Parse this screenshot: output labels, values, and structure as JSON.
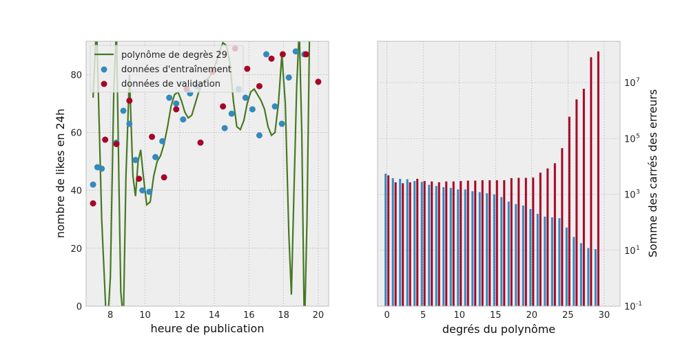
{
  "chart_data": [
    {
      "type": "scatter",
      "xlabel": "heure de publication",
      "ylabel": "nombre de likes en 24h",
      "xlim": [
        6.6,
        20.6
      ],
      "ylim": [
        0,
        91.5
      ],
      "xticks": [
        8,
        10,
        12,
        14,
        16,
        18,
        20
      ],
      "yticks": [
        0,
        20,
        40,
        60,
        80
      ],
      "grid": true,
      "legend_position": "top-left",
      "colors": {
        "polynomial": "#467821",
        "train": "#348ABD",
        "validation": "#A60628",
        "background": "#EEEEEE"
      },
      "series": [
        {
          "name": "polynôme de degrès 29",
          "kind": "line",
          "points": [
            [
              7.0,
              72
            ],
            [
              7.2,
              98
            ],
            [
              7.5,
              30
            ],
            [
              7.8,
              -10
            ],
            [
              8.0,
              10
            ],
            [
              8.2,
              75
            ],
            [
              8.35,
              96
            ],
            [
              8.5,
              40
            ],
            [
              8.6,
              5
            ],
            [
              8.75,
              -5
            ],
            [
              8.9,
              45
            ],
            [
              9.1,
              80
            ],
            [
              9.3,
              45
            ],
            [
              9.45,
              38
            ],
            [
              9.6,
              50
            ],
            [
              9.75,
              54
            ],
            [
              9.9,
              45
            ],
            [
              10.1,
              35
            ],
            [
              10.3,
              36
            ],
            [
              10.5,
              45
            ],
            [
              10.7,
              50
            ],
            [
              10.9,
              52
            ],
            [
              11.1,
              56
            ],
            [
              11.3,
              62
            ],
            [
              11.5,
              69
            ],
            [
              11.7,
              73
            ],
            [
              11.9,
              74
            ],
            [
              12.1,
              71
            ],
            [
              12.3,
              67
            ],
            [
              12.5,
              65
            ],
            [
              12.7,
              66
            ],
            [
              12.9,
              70
            ],
            [
              13.1,
              74
            ],
            [
              13.3,
              77
            ],
            [
              13.5,
              78
            ],
            [
              13.7,
              79
            ],
            [
              13.9,
              81
            ],
            [
              14.1,
              84
            ],
            [
              14.3,
              88
            ],
            [
              14.5,
              91
            ],
            [
              14.7,
              90
            ],
            [
              14.9,
              84
            ],
            [
              15.1,
              71
            ],
            [
              15.3,
              62
            ],
            [
              15.5,
              61
            ],
            [
              15.7,
              64
            ],
            [
              15.9,
              70
            ],
            [
              16.1,
              74
            ],
            [
              16.3,
              75
            ],
            [
              16.5,
              73
            ],
            [
              16.7,
              71
            ],
            [
              16.9,
              68
            ],
            [
              17.1,
              62
            ],
            [
              17.3,
              59
            ],
            [
              17.5,
              60
            ],
            [
              17.7,
              70
            ],
            [
              17.9,
              87
            ],
            [
              18.1,
              70
            ],
            [
              18.3,
              25
            ],
            [
              18.45,
              4
            ],
            [
              18.6,
              40
            ],
            [
              18.75,
              75
            ],
            [
              18.9,
              96
            ],
            [
              19.05,
              60
            ],
            [
              19.2,
              -10
            ],
            [
              19.35,
              30
            ],
            [
              19.5,
              96
            ]
          ]
        },
        {
          "name": "données d'entraînement",
          "kind": "scatter",
          "points": [
            [
              7.0,
              42
            ],
            [
              7.25,
              48
            ],
            [
              7.5,
              47.5
            ],
            [
              8.35,
              56.5
            ],
            [
              8.75,
              67.5
            ],
            [
              9.1,
              63
            ],
            [
              9.45,
              50.5
            ],
            [
              9.85,
              40
            ],
            [
              10.25,
              39.5
            ],
            [
              10.6,
              51.5
            ],
            [
              11.0,
              57
            ],
            [
              11.4,
              72
            ],
            [
              11.8,
              70
            ],
            [
              12.2,
              64.5
            ],
            [
              12.6,
              73.5
            ],
            [
              13.0,
              76
            ],
            [
              14.6,
              61.5
            ],
            [
              15.0,
              66.5
            ],
            [
              15.4,
              75
            ],
            [
              15.8,
              72
            ],
            [
              16.2,
              68
            ],
            [
              16.6,
              59
            ],
            [
              17.0,
              87
            ],
            [
              17.5,
              69
            ],
            [
              17.9,
              63
            ],
            [
              18.3,
              79
            ],
            [
              18.7,
              88
            ],
            [
              19.2,
              87
            ]
          ]
        },
        {
          "name": "données de validation",
          "kind": "scatter",
          "points": [
            [
              7.0,
              35.5
            ],
            [
              7.7,
              57.5
            ],
            [
              8.35,
              56
            ],
            [
              9.1,
              71
            ],
            [
              9.65,
              44
            ],
            [
              10.4,
              58.5
            ],
            [
              11.1,
              44.5
            ],
            [
              11.8,
              68
            ],
            [
              12.4,
              75
            ],
            [
              13.2,
              56.5
            ],
            [
              13.9,
              81
            ],
            [
              14.5,
              69
            ],
            [
              15.2,
              89
            ],
            [
              15.9,
              82
            ],
            [
              16.6,
              76
            ],
            [
              17.3,
              85.5
            ],
            [
              17.95,
              87
            ],
            [
              19.3,
              87
            ],
            [
              20.0,
              77.5
            ]
          ]
        }
      ]
    },
    {
      "type": "bar",
      "xlabel": "degrés du polynôme",
      "ylabel": "Somme des carrés des erreurs",
      "y_scale": "log",
      "ylim": [
        0.1,
        300000000
      ],
      "xlim": [
        -1.3,
        32.2
      ],
      "xticks": [
        0,
        5,
        10,
        15,
        20,
        25,
        30
      ],
      "ytick_labels": [
        "10",
        "10",
        "10",
        "10",
        "10"
      ],
      "ytick_exponents": [
        "-1",
        "1",
        "3",
        "5",
        "7"
      ],
      "ytick_values": [
        0.1,
        10,
        1000,
        100000,
        10000000
      ],
      "yaxis_position": "right",
      "grid": true,
      "colors": {
        "train": "#348ABD",
        "validation": "#A60628",
        "background": "#EEEEEE"
      },
      "categories": [
        0,
        1,
        2,
        3,
        4,
        5,
        6,
        7,
        8,
        9,
        10,
        11,
        12,
        13,
        14,
        15,
        16,
        17,
        18,
        19,
        20,
        21,
        22,
        23,
        24,
        25,
        26,
        27,
        28,
        29
      ],
      "series": [
        {
          "kind": "train",
          "values": [
            5500,
            3800,
            3600,
            3500,
            3000,
            2800,
            2200,
            2000,
            1800,
            1700,
            1500,
            1500,
            1300,
            1200,
            1100,
            1000,
            800,
            550,
            450,
            400,
            300,
            200,
            160,
            150,
            140,
            65,
            30,
            18,
            12,
            11
          ]
        },
        {
          "kind": "validation",
          "values": [
            4800,
            2700,
            2500,
            2700,
            3600,
            3000,
            2900,
            2700,
            2900,
            2900,
            3000,
            3100,
            3100,
            3200,
            3200,
            3200,
            3200,
            3800,
            3900,
            3900,
            4000,
            6000,
            8500,
            13000,
            45000,
            600000,
            2500000,
            6000000,
            80000000,
            130000000
          ]
        }
      ]
    }
  ]
}
